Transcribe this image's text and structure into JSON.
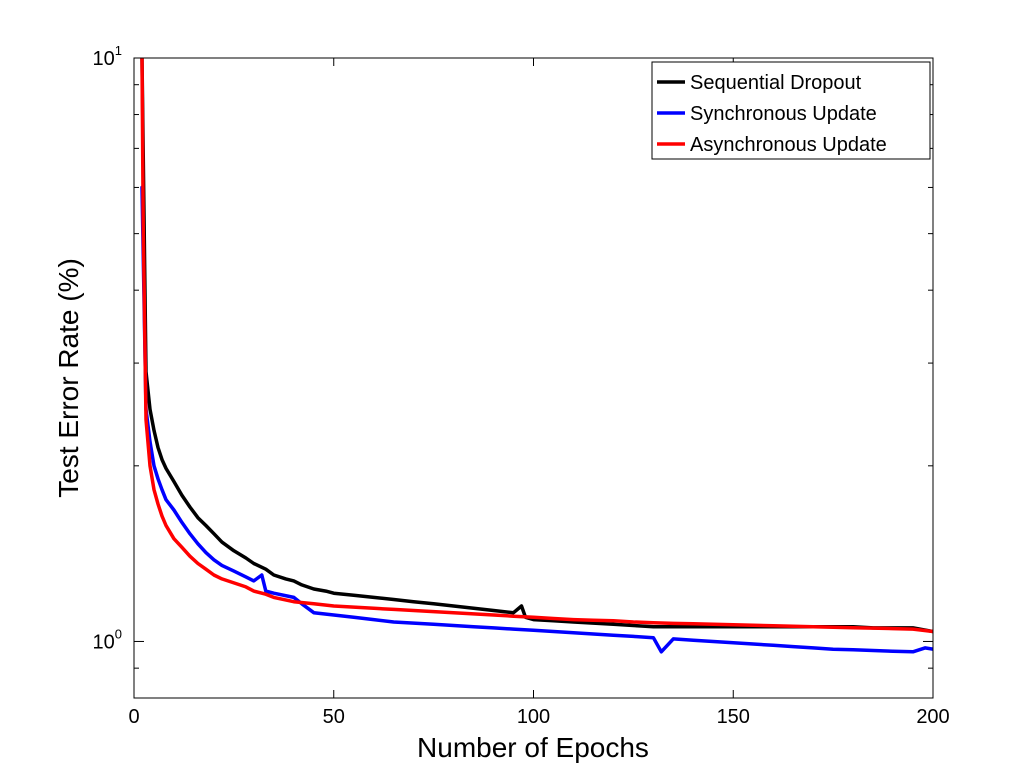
{
  "chart_data": {
    "type": "line",
    "title": "",
    "xlabel": "Number of Epochs",
    "ylabel": "Test Error Rate (%)",
    "xlim": [
      0,
      200
    ],
    "ylim": [
      0.8,
      10
    ],
    "yscale": "log",
    "grid": false,
    "legend_position": "top-right",
    "xticks": [
      0,
      50,
      100,
      150,
      200
    ],
    "xtick_labels": [
      "0",
      "50",
      "100",
      "150",
      "200"
    ],
    "yticks": [
      1,
      10
    ],
    "ytick_labels": [
      {
        "base": "10",
        "exp": "0"
      },
      {
        "base": "10",
        "exp": "1"
      }
    ],
    "series": [
      {
        "name": "Sequential Dropout",
        "color": "#000000",
        "points": [
          [
            2,
            10
          ],
          [
            3,
            2.9
          ],
          [
            4,
            2.5
          ],
          [
            5,
            2.3
          ],
          [
            6,
            2.15
          ],
          [
            7,
            2.05
          ],
          [
            8,
            1.98
          ],
          [
            10,
            1.88
          ],
          [
            12,
            1.78
          ],
          [
            14,
            1.7
          ],
          [
            16,
            1.63
          ],
          [
            18,
            1.58
          ],
          [
            20,
            1.53
          ],
          [
            22,
            1.48
          ],
          [
            25,
            1.43
          ],
          [
            28,
            1.39
          ],
          [
            30,
            1.36
          ],
          [
            33,
            1.33
          ],
          [
            35,
            1.3
          ],
          [
            38,
            1.28
          ],
          [
            40,
            1.27
          ],
          [
            42,
            1.25
          ],
          [
            45,
            1.23
          ],
          [
            48,
            1.22
          ],
          [
            50,
            1.21
          ],
          [
            55,
            1.2
          ],
          [
            60,
            1.19
          ],
          [
            65,
            1.18
          ],
          [
            70,
            1.17
          ],
          [
            75,
            1.16
          ],
          [
            80,
            1.15
          ],
          [
            85,
            1.14
          ],
          [
            90,
            1.13
          ],
          [
            95,
            1.12
          ],
          [
            97,
            1.15
          ],
          [
            98,
            1.1
          ],
          [
            100,
            1.09
          ],
          [
            105,
            1.085
          ],
          [
            110,
            1.08
          ],
          [
            115,
            1.075
          ],
          [
            120,
            1.07
          ],
          [
            125,
            1.065
          ],
          [
            130,
            1.06
          ],
          [
            135,
            1.06
          ],
          [
            140,
            1.06
          ],
          [
            145,
            1.06
          ],
          [
            150,
            1.06
          ],
          [
            155,
            1.06
          ],
          [
            160,
            1.06
          ],
          [
            165,
            1.06
          ],
          [
            170,
            1.06
          ],
          [
            175,
            1.06
          ],
          [
            180,
            1.06
          ],
          [
            185,
            1.055
          ],
          [
            190,
            1.055
          ],
          [
            195,
            1.055
          ],
          [
            200,
            1.04
          ]
        ]
      },
      {
        "name": "Synchronous Update",
        "color": "#0000ff",
        "points": [
          [
            2,
            6
          ],
          [
            3,
            2.5
          ],
          [
            4,
            2.2
          ],
          [
            5,
            2.0
          ],
          [
            6,
            1.9
          ],
          [
            7,
            1.82
          ],
          [
            8,
            1.75
          ],
          [
            10,
            1.68
          ],
          [
            12,
            1.6
          ],
          [
            14,
            1.53
          ],
          [
            16,
            1.47
          ],
          [
            18,
            1.42
          ],
          [
            20,
            1.38
          ],
          [
            22,
            1.35
          ],
          [
            25,
            1.32
          ],
          [
            28,
            1.29
          ],
          [
            30,
            1.27
          ],
          [
            32,
            1.3
          ],
          [
            33,
            1.22
          ],
          [
            35,
            1.21
          ],
          [
            40,
            1.19
          ],
          [
            42,
            1.16
          ],
          [
            45,
            1.12
          ],
          [
            50,
            1.11
          ],
          [
            55,
            1.1
          ],
          [
            60,
            1.09
          ],
          [
            65,
            1.08
          ],
          [
            70,
            1.075
          ],
          [
            75,
            1.07
          ],
          [
            80,
            1.065
          ],
          [
            85,
            1.06
          ],
          [
            90,
            1.055
          ],
          [
            95,
            1.05
          ],
          [
            100,
            1.045
          ],
          [
            105,
            1.04
          ],
          [
            110,
            1.035
          ],
          [
            115,
            1.03
          ],
          [
            120,
            1.025
          ],
          [
            125,
            1.02
          ],
          [
            130,
            1.015
          ],
          [
            132,
            0.96
          ],
          [
            135,
            1.01
          ],
          [
            140,
            1.005
          ],
          [
            145,
            1.0
          ],
          [
            150,
            0.995
          ],
          [
            155,
            0.99
          ],
          [
            160,
            0.985
          ],
          [
            165,
            0.98
          ],
          [
            170,
            0.975
          ],
          [
            175,
            0.97
          ],
          [
            180,
            0.968
          ],
          [
            185,
            0.965
          ],
          [
            190,
            0.962
          ],
          [
            195,
            0.96
          ],
          [
            198,
            0.975
          ],
          [
            200,
            0.97
          ]
        ]
      },
      {
        "name": "Asynchronous Update",
        "color": "#ff0000",
        "points": [
          [
            2,
            10
          ],
          [
            2.3,
            5.2
          ],
          [
            3,
            2.4
          ],
          [
            4,
            2.0
          ],
          [
            5,
            1.82
          ],
          [
            6,
            1.72
          ],
          [
            7,
            1.64
          ],
          [
            8,
            1.58
          ],
          [
            10,
            1.5
          ],
          [
            12,
            1.45
          ],
          [
            14,
            1.4
          ],
          [
            16,
            1.36
          ],
          [
            18,
            1.33
          ],
          [
            20,
            1.3
          ],
          [
            22,
            1.28
          ],
          [
            25,
            1.26
          ],
          [
            28,
            1.24
          ],
          [
            30,
            1.22
          ],
          [
            33,
            1.205
          ],
          [
            35,
            1.19
          ],
          [
            40,
            1.17
          ],
          [
            45,
            1.16
          ],
          [
            50,
            1.15
          ],
          [
            55,
            1.145
          ],
          [
            60,
            1.14
          ],
          [
            65,
            1.135
          ],
          [
            70,
            1.13
          ],
          [
            75,
            1.125
          ],
          [
            80,
            1.12
          ],
          [
            85,
            1.115
          ],
          [
            90,
            1.11
          ],
          [
            95,
            1.105
          ],
          [
            100,
            1.1
          ],
          [
            105,
            1.095
          ],
          [
            110,
            1.09
          ],
          [
            115,
            1.087
          ],
          [
            120,
            1.085
          ],
          [
            125,
            1.08
          ],
          [
            130,
            1.077
          ],
          [
            135,
            1.074
          ],
          [
            140,
            1.072
          ],
          [
            145,
            1.07
          ],
          [
            150,
            1.068
          ],
          [
            155,
            1.066
          ],
          [
            160,
            1.064
          ],
          [
            165,
            1.062
          ],
          [
            170,
            1.06
          ],
          [
            175,
            1.058
          ],
          [
            180,
            1.056
          ],
          [
            185,
            1.054
          ],
          [
            190,
            1.052
          ],
          [
            195,
            1.05
          ],
          [
            200,
            1.04
          ]
        ]
      }
    ]
  }
}
